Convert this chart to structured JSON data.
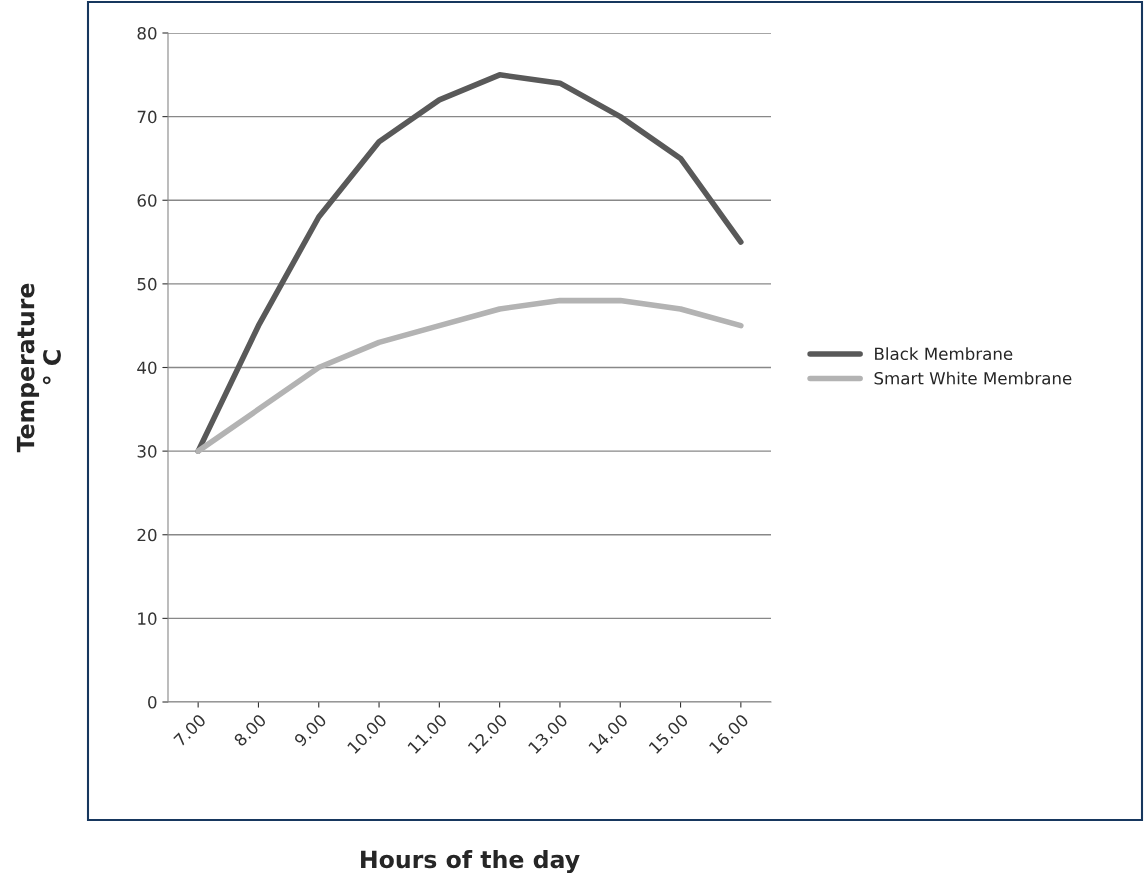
{
  "chart_data": {
    "type": "line",
    "xlabel": "Hours of the day",
    "ylabel": "Temperature\n° C",
    "categories": [
      "7.00",
      "8.00",
      "9.00",
      "10.00",
      "11.00",
      "12.00",
      "13.00",
      "14.00",
      "15.00",
      "16.00"
    ],
    "series": [
      {
        "name": "Black Membrane",
        "color": "#595959",
        "values": [
          30,
          45,
          58,
          67,
          72,
          75,
          74,
          70,
          65,
          55
        ]
      },
      {
        "name": "Smart White Membrane",
        "color": "#b3b3b3",
        "values": [
          30,
          35,
          40,
          43,
          45,
          47,
          48,
          48,
          47,
          45
        ]
      }
    ],
    "ylim": [
      0,
      80
    ],
    "yticks": [
      0,
      10,
      20,
      30,
      40,
      50,
      60,
      70,
      80
    ],
    "grid": "y",
    "legend": "right",
    "marker": "none",
    "line_style": "solid"
  }
}
